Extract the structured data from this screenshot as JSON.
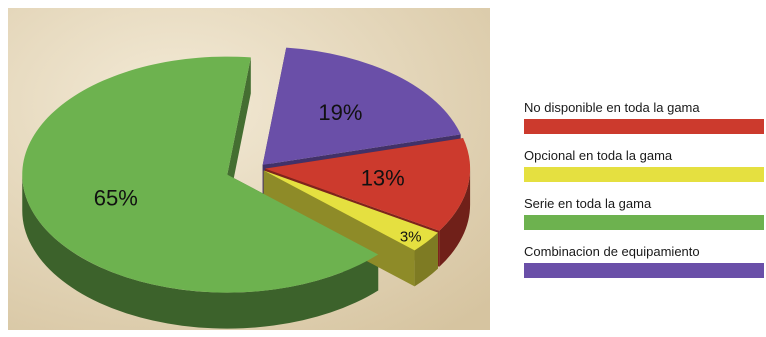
{
  "chart_data": {
    "type": "pie",
    "title": "",
    "categories": [
      "No disponible en toda la gama",
      "Opcional en toda la gama",
      "Serie en toda la gama",
      "Combinacion de equipamiento"
    ],
    "values": [
      13,
      3,
      65,
      19
    ],
    "value_labels": [
      "13%",
      "3%",
      "65%",
      "19%"
    ],
    "colors": [
      "#cc3a2d",
      "#e5e040",
      "#6db24f",
      "#6a4fa8"
    ],
    "legend_position": "right",
    "style": "3d-exploded"
  },
  "legend": {
    "items": [
      {
        "label": "No disponible en toda la gama",
        "color": "#cc3a2d"
      },
      {
        "label": "Opcional en toda la gama",
        "color": "#e5e040"
      },
      {
        "label": "Serie en toda la gama",
        "color": "#6db24f"
      },
      {
        "label": "Combinacion de equipamiento",
        "color": "#6a4fa8"
      }
    ]
  },
  "background": {
    "color": "#ece0c7",
    "shadow": "#d9c9a6"
  }
}
